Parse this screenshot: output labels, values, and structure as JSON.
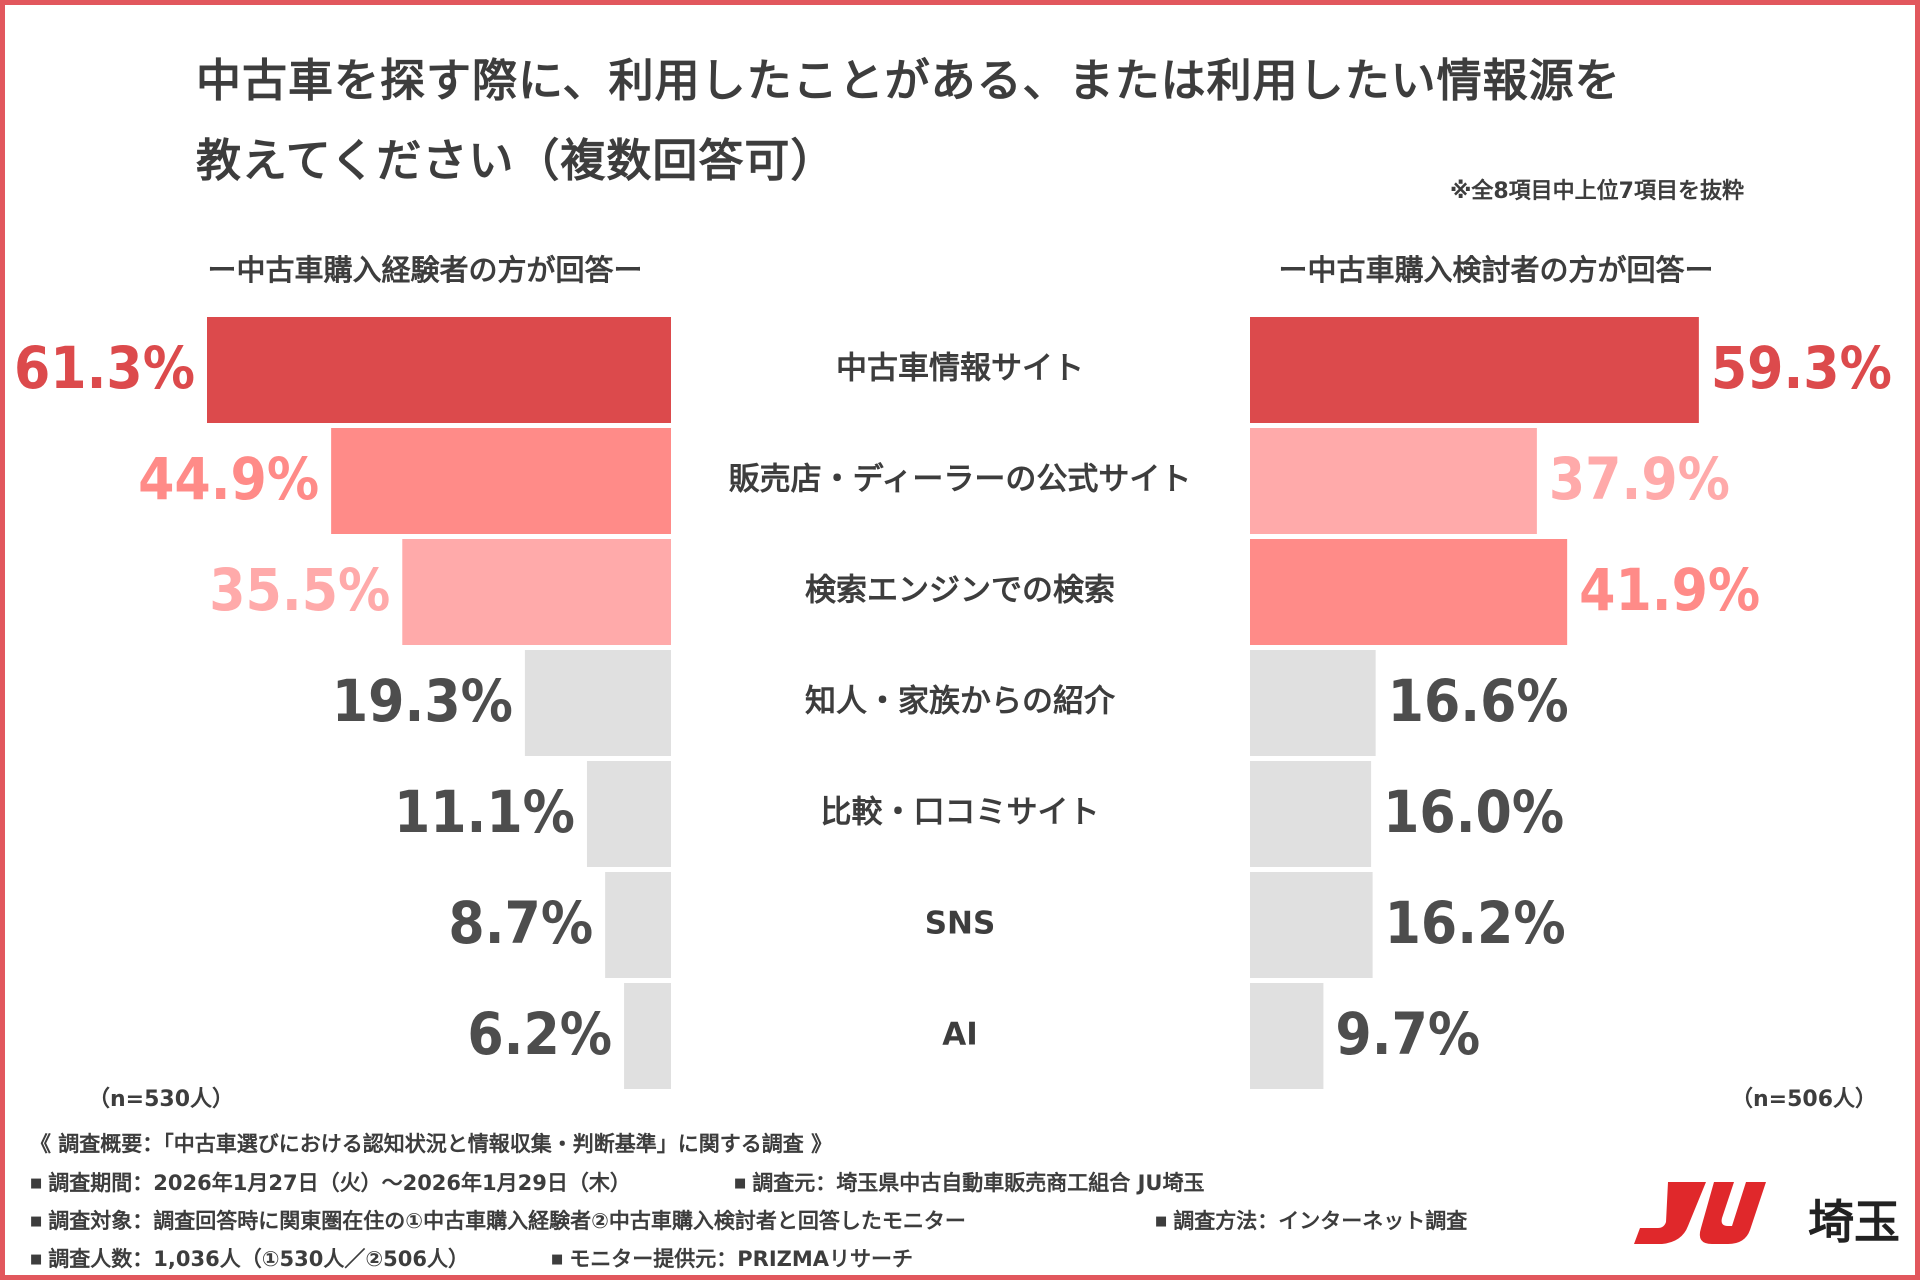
{
  "title": {
    "line1": "中古車を探す際に、利用したことがある、または利用したい情報源を",
    "line2": "教えてください（複数回答可）"
  },
  "note": "※全8項目中上位7項目を抜粋",
  "chart_data": {
    "type": "bar",
    "layout": "butterfly",
    "title": "中古車を探す際に、利用したことがある、または利用したい情報源を教えてください（複数回答可）",
    "categories": [
      "中古車情報サイト",
      "販売店・ディーラーの公式サイト",
      "検索エンジンでの検索",
      "知人・家族からの紹介",
      "比較・口コミサイト",
      "SNS",
      "AI"
    ],
    "series": [
      {
        "name": "ー中古車購入経験者の方が回答ー",
        "n": "（n=530人）",
        "values": [
          61.3,
          44.9,
          35.5,
          19.3,
          11.1,
          8.7,
          6.2
        ],
        "labels": [
          "61.3%",
          "44.9%",
          "35.5%",
          "19.3%",
          "11.1%",
          "8.7%",
          "6.2%"
        ]
      },
      {
        "name": "ー中古車購入検討者の方が回答ー",
        "n": "（n=506人）",
        "values": [
          59.3,
          37.9,
          41.9,
          16.6,
          16.0,
          16.2,
          9.7
        ],
        "labels": [
          "59.3%",
          "37.9%",
          "41.9%",
          "16.6%",
          "16.0%",
          "16.2%",
          "9.7%"
        ]
      }
    ],
    "xlim": [
      0,
      61.3
    ],
    "unit": "%",
    "colors": {
      "rank1": "#dc4a4c",
      "rank2": "#ff8b88",
      "rank3": "#ffaaaa",
      "other": "#e0e0e0",
      "label_other": "#4d4d4d"
    }
  },
  "footer": {
    "header": "《 調査概要：「中古車選びにおける認知状況と情報収集・判断基準」に関する調査 》",
    "period": "調査期間：2026年1月27日（火）～2026年1月29日（木）",
    "org": "調査元：埼玉県中古自動車販売商工組合 JU埼玉",
    "target": "調査対象：調査回答時に関東圏在住の①中古車購入経験者②中古車購入検討者と回答したモニター",
    "method": "調査方法：インターネット調査",
    "count": "調査人数：1,036人（①530人／②506人）",
    "provider": "モニター提供元：PRIZMAリサーチ"
  },
  "logo": {
    "text": "埼玉",
    "mark_text": "JU",
    "color": "#e0282b"
  },
  "frame_color": "#e2575d"
}
